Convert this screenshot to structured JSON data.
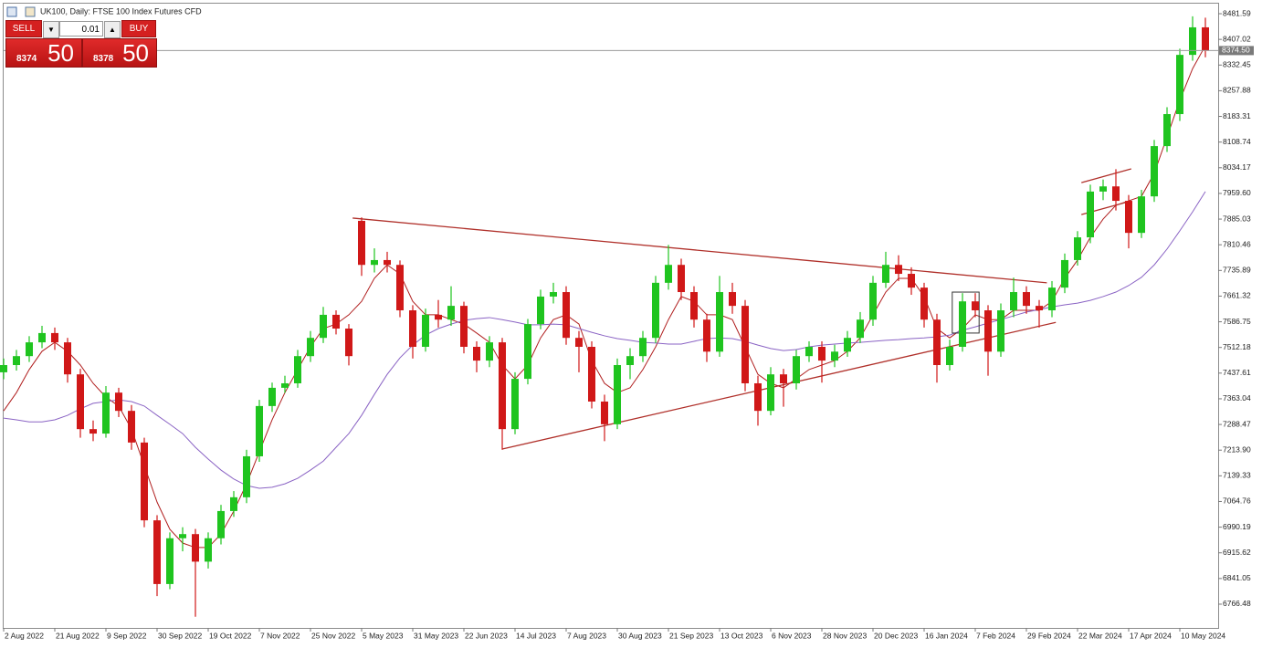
{
  "header": {
    "title": "UK100, Daily:  FTSE 100 Index Futures CFD"
  },
  "trade_panel": {
    "sell_label": "SELL",
    "buy_label": "BUY",
    "lot": "0.01",
    "bid": {
      "main": "8374",
      "pips": "50"
    },
    "ask": {
      "main": "8378",
      "pips": "50"
    }
  },
  "chart_data": {
    "type": "candlestick",
    "categories": [
      "2 Aug 2022",
      null,
      null,
      null,
      "21 Aug 2022",
      null,
      null,
      null,
      "9 Sep 2022",
      null,
      null,
      null,
      "30 Sep 2022",
      null,
      null,
      null,
      "19 Oct 2022",
      null,
      null,
      null,
      "7 Nov 2022",
      null,
      null,
      null,
      "25 Nov 2022",
      null,
      null,
      null,
      "5 May 2023",
      null,
      null,
      null,
      "31 May 2023",
      null,
      null,
      null,
      "22 Jun 2023",
      null,
      null,
      null,
      "14 Jul 2023",
      null,
      null,
      null,
      "7 Aug 2023",
      null,
      null,
      null,
      "30 Aug 2023",
      null,
      null,
      null,
      "21 Sep 2023",
      null,
      null,
      null,
      "13 Oct 2023",
      null,
      null,
      null,
      "6 Nov 2023",
      null,
      null,
      null,
      "28 Nov 2023",
      null,
      null,
      null,
      "20 Dec 2023",
      null,
      null,
      null,
      "16 Jan 2024",
      null,
      null,
      null,
      "7 Feb 2024",
      null,
      null,
      null,
      "29 Feb 2024",
      null,
      null,
      null,
      "22 Mar 2024",
      null,
      null,
      null,
      "17 Apr 2024",
      null,
      null,
      null,
      "10 May 2024",
      null,
      null
    ],
    "open": [
      7440,
      7461,
      7487,
      7527,
      7554,
      7527,
      7434,
      7275,
      7262,
      7381,
      7328,
      7236,
      7010,
      6825,
      6958,
      6970,
      6890,
      6958,
      7037,
      7077,
      7196,
      7342,
      7395,
      7408,
      7487,
      7540,
      7607,
      7567,
      7880,
      7752,
      7766,
      7752,
      7620,
      7514,
      7607,
      7593,
      7633,
      7514,
      7474,
      7527,
      7275,
      7421,
      7580,
      7660,
      7673,
      7540,
      7514,
      7355,
      7289,
      7461,
      7487,
      7540,
      7700,
      7752,
      7673,
      7593,
      7500,
      7673,
      7633,
      7408,
      7328,
      7434,
      7408,
      7487,
      7514,
      7474,
      7500,
      7540,
      7593,
      7700,
      7752,
      7726,
      7686,
      7593,
      7461,
      7514,
      7646,
      7620,
      7500,
      7620,
      7673,
      7633,
      7620,
      7686,
      7766,
      7832,
      7965,
      7980,
      7938,
      7845,
      7951,
      8097,
      8190,
      8362,
      8442
    ],
    "high": [
      7480,
      7505,
      7545,
      7575,
      7570,
      7540,
      7450,
      7300,
      7400,
      7395,
      7345,
      7250,
      7025,
      6975,
      6990,
      6985,
      6975,
      7055,
      7095,
      7215,
      7360,
      7410,
      7430,
      7505,
      7560,
      7630,
      7620,
      7580,
      7890,
      7800,
      7790,
      7765,
      7635,
      7625,
      7650,
      7690,
      7645,
      7530,
      7545,
      7540,
      7440,
      7595,
      7680,
      7700,
      7690,
      7560,
      7530,
      7375,
      7480,
      7510,
      7560,
      7720,
      7810,
      7770,
      7690,
      7610,
      7720,
      7700,
      7650,
      7430,
      7455,
      7450,
      7505,
      7530,
      7530,
      7520,
      7560,
      7615,
      7720,
      7790,
      7780,
      7745,
      7700,
      7610,
      7535,
      7670,
      7670,
      7635,
      7640,
      7715,
      7690,
      7650,
      7705,
      7785,
      7850,
      7985,
      8000,
      8030,
      7955,
      7970,
      8115,
      8210,
      8380,
      8474,
      8470
    ],
    "low": [
      7420,
      7445,
      7470,
      7510,
      7505,
      7410,
      7250,
      7240,
      7250,
      7310,
      7215,
      6990,
      6790,
      6810,
      6920,
      6730,
      6870,
      6940,
      7020,
      7060,
      7180,
      7325,
      7380,
      7395,
      7470,
      7525,
      7550,
      7460,
      7720,
      7730,
      7730,
      7600,
      7480,
      7500,
      7570,
      7575,
      7495,
      7440,
      7455,
      7215,
      7260,
      7405,
      7565,
      7640,
      7520,
      7440,
      7335,
      7240,
      7275,
      7420,
      7470,
      7525,
      7680,
      7650,
      7570,
      7470,
      7485,
      7610,
      7385,
      7285,
      7315,
      7340,
      7390,
      7470,
      7410,
      7455,
      7485,
      7525,
      7575,
      7685,
      7705,
      7665,
      7570,
      7410,
      7445,
      7500,
      7600,
      7430,
      7485,
      7600,
      7610,
      7570,
      7600,
      7670,
      7750,
      7815,
      7940,
      7910,
      7800,
      7830,
      7935,
      8080,
      8170,
      8345,
      8355
    ],
    "close": [
      7461,
      7487,
      7527,
      7554,
      7527,
      7434,
      7275,
      7262,
      7381,
      7328,
      7236,
      7010,
      6825,
      6958,
      6970,
      6890,
      6958,
      7037,
      7077,
      7196,
      7342,
      7395,
      7408,
      7487,
      7540,
      7607,
      7567,
      7487,
      7752,
      7766,
      7752,
      7620,
      7514,
      7607,
      7593,
      7633,
      7514,
      7474,
      7527,
      7275,
      7421,
      7580,
      7660,
      7673,
      7540,
      7514,
      7355,
      7289,
      7461,
      7487,
      7540,
      7700,
      7752,
      7673,
      7593,
      7500,
      7673,
      7633,
      7408,
      7328,
      7434,
      7408,
      7487,
      7514,
      7474,
      7500,
      7540,
      7593,
      7700,
      7752,
      7726,
      7686,
      7593,
      7461,
      7514,
      7646,
      7620,
      7500,
      7620,
      7673,
      7633,
      7620,
      7686,
      7766,
      7832,
      7965,
      7980,
      7938,
      7845,
      7951,
      8097,
      8190,
      8362,
      8442,
      8374.5
    ],
    "up_color": "#1fc41f",
    "down_color": "#d01818",
    "moving_averages": [
      {
        "color": "#b01e1e",
        "values": [
          7328,
          7381,
          7448,
          7501,
          7527,
          7501,
          7461,
          7408,
          7368,
          7342,
          7275,
          7169,
          7063,
          6984,
          6944,
          6931,
          6931,
          6970,
          7037,
          7116,
          7209,
          7302,
          7381,
          7448,
          7514,
          7567,
          7580,
          7607,
          7646,
          7713,
          7752,
          7726,
          7646,
          7607,
          7607,
          7593,
          7580,
          7554,
          7527,
          7461,
          7421,
          7461,
          7540,
          7593,
          7607,
          7580,
          7474,
          7408,
          7381,
          7395,
          7448,
          7514,
          7593,
          7660,
          7646,
          7607,
          7607,
          7593,
          7514,
          7434,
          7408,
          7395,
          7421,
          7448,
          7461,
          7474,
          7501,
          7540,
          7607,
          7673,
          7713,
          7713,
          7660,
          7567,
          7540,
          7567,
          7607,
          7593,
          7593,
          7620,
          7620,
          7620,
          7646,
          7713,
          7766,
          7832,
          7885,
          7925,
          7938,
          7951,
          8018,
          8124,
          8230,
          8322,
          8389
        ]
      },
      {
        "color": "#8a63c4",
        "values": [
          7307,
          7302,
          7296,
          7296,
          7302,
          7315,
          7334,
          7350,
          7355,
          7360,
          7355,
          7342,
          7315,
          7289,
          7262,
          7222,
          7188,
          7156,
          7130,
          7111,
          7103,
          7106,
          7116,
          7132,
          7156,
          7182,
          7222,
          7262,
          7315,
          7376,
          7434,
          7482,
          7519,
          7548,
          7567,
          7580,
          7591,
          7596,
          7599,
          7593,
          7586,
          7578,
          7578,
          7580,
          7578,
          7567,
          7556,
          7546,
          7538,
          7533,
          7527,
          7525,
          7522,
          7522,
          7530,
          7538,
          7540,
          7538,
          7530,
          7519,
          7509,
          7503,
          7506,
          7514,
          7519,
          7522,
          7525,
          7527,
          7530,
          7533,
          7535,
          7538,
          7540,
          7543,
          7548,
          7562,
          7572,
          7583,
          7593,
          7604,
          7615,
          7622,
          7630,
          7636,
          7641,
          7649,
          7660,
          7673,
          7692,
          7716,
          7752,
          7798,
          7851,
          7906,
          7965
        ]
      }
    ],
    "trendline_color": "#b0302a",
    "trendlines": [
      {
        "x": [
          27.3,
          81.6
        ],
        "y": [
          7888,
          7700
        ]
      },
      {
        "x": [
          39,
          82.3
        ],
        "y": [
          7217,
          7585
        ]
      },
      {
        "x": [
          84.3,
          88.2
        ],
        "y": [
          7991,
          8031
        ]
      },
      {
        "x": [
          84.3,
          88.2
        ],
        "y": [
          7898,
          7938
        ]
      }
    ],
    "rectangles": [
      {
        "x": [
          74.2,
          76.3
        ],
        "y": [
          7554,
          7673
        ]
      }
    ],
    "ylim": [
      6697.5,
      8510.8
    ],
    "yticks": [
      8481.59,
      8407.02,
      8332.45,
      8257.88,
      8183.31,
      8108.74,
      8034.17,
      {
        "value": 7959.6,
        "label": "7959.60"
      },
      7885.03,
      7810.46,
      7735.89,
      7661.32,
      7586.75,
      7512.18,
      7437.61,
      7363.04,
      7288.47,
      {
        "value": 7213.9,
        "label": "7213.90"
      },
      7139.33,
      7064.76,
      6990.19,
      6915.62,
      6841.05,
      6766.48
    ],
    "last_price": {
      "value": 8374.5,
      "label": "8374.50"
    }
  }
}
